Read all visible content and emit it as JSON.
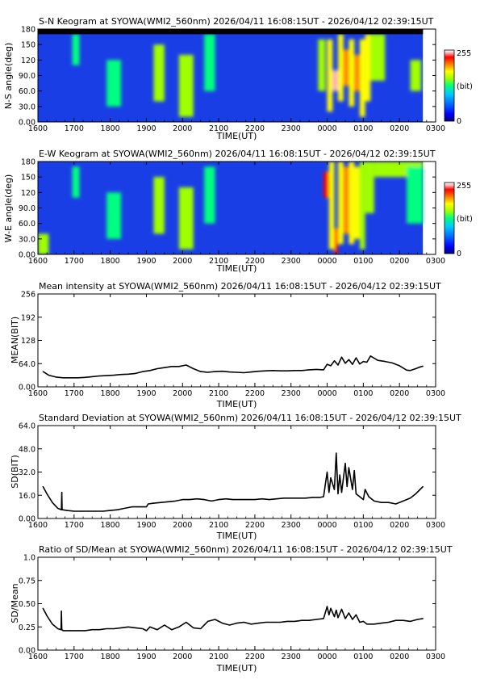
{
  "figure": {
    "time_axis": {
      "tick_labels": [
        "1600",
        "1700",
        "1800",
        "1900",
        "2000",
        "2100",
        "2200",
        "2300",
        "0000",
        "0100",
        "0200",
        "0300"
      ],
      "xlabel": "TIME(UT)",
      "start_hour": 16,
      "end_hour": 27,
      "data_end_hour": 26.65
    }
  },
  "keograms": [
    {
      "id": "sn",
      "title": "S-N Keogram at SYOWA(WMI2_560nm)    2026/04/11 16:08:15UT - 2026/04/12 02:39:15UT",
      "ylabel": "N-S angle(deg)",
      "yticks": [
        "0.00",
        "30.0",
        "60.0",
        "90.0",
        "120",
        "150",
        "180"
      ],
      "colorbar": {
        "max": "255",
        "unit": "(bit)",
        "min": "0"
      },
      "color_scale": [
        "#00007f",
        "#0000ff",
        "#0070ff",
        "#00c8ff",
        "#00ff80",
        "#a0ff00",
        "#ffff00",
        "#ff8000",
        "#ff0000",
        "#ffb0b0",
        "#ffffff"
      ],
      "background_color": "#1a3ee6",
      "top_band": {
        "from_deg": 170,
        "to_deg": 180,
        "color": "#000000",
        "end_hour": 26.65
      },
      "bright_features": [
        {
          "x": [
            16.95,
            17.15
          ],
          "y": [
            110,
            170
          ],
          "level": 0.42
        },
        {
          "x": [
            17.9,
            18.3
          ],
          "y": [
            30,
            120
          ],
          "level": 0.42
        },
        {
          "x": [
            19.2,
            19.5
          ],
          "y": [
            40,
            150
          ],
          "level": 0.45
        },
        {
          "x": [
            19.9,
            20.3
          ],
          "y": [
            10,
            130
          ],
          "level": 0.48
        },
        {
          "x": [
            20.6,
            20.9
          ],
          "y": [
            60,
            170
          ],
          "level": 0.42
        },
        {
          "x": [
            23.75,
            23.95
          ],
          "y": [
            60,
            160
          ],
          "level": 0.45
        },
        {
          "x": [
            24.0,
            24.15
          ],
          "y": [
            20,
            160
          ],
          "level": 0.55
        },
        {
          "x": [
            24.15,
            24.3
          ],
          "y": [
            60,
            100
          ],
          "level": 0.85
        },
        {
          "x": [
            24.3,
            24.45
          ],
          "y": [
            40,
            170
          ],
          "level": 0.62
        },
        {
          "x": [
            24.45,
            24.6
          ],
          "y": [
            70,
            140
          ],
          "level": 0.72
        },
        {
          "x": [
            24.6,
            24.75
          ],
          "y": [
            30,
            160
          ],
          "level": 0.58
        },
        {
          "x": [
            24.75,
            24.9
          ],
          "y": [
            60,
            130
          ],
          "level": 0.7
        },
        {
          "x": [
            24.9,
            25.05
          ],
          "y": [
            10,
            160
          ],
          "level": 0.55
        },
        {
          "x": [
            25.05,
            25.2
          ],
          "y": [
            40,
            170
          ],
          "level": 0.62
        },
        {
          "x": [
            25.2,
            25.6
          ],
          "y": [
            80,
            170
          ],
          "level": 0.45
        },
        {
          "x": [
            26.3,
            26.6
          ],
          "y": [
            60,
            120
          ],
          "level": 0.45
        }
      ]
    },
    {
      "id": "ew",
      "title": "E-W Keogram at SYOWA(WMI2_560nm)    2026/04/11 16:08:15UT - 2026/04/12 02:39:15UT",
      "ylabel": "W-E angle(deg)",
      "yticks": [
        "0.00",
        "30.0",
        "60.0",
        "90.0",
        "120",
        "150",
        "180"
      ],
      "colorbar": {
        "max": "255",
        "unit": "(bit)",
        "min": "0"
      },
      "color_scale": [
        "#00007f",
        "#0000ff",
        "#0070ff",
        "#00c8ff",
        "#00ff80",
        "#a0ff00",
        "#ffff00",
        "#ff8000",
        "#ff0000",
        "#ffb0b0",
        "#ffffff"
      ],
      "background_color": "#1a3ee6",
      "top_band": {
        "from_deg": 180,
        "to_deg": 180,
        "color": "#000000",
        "end_hour": 26.65
      },
      "bright_features": [
        {
          "x": [
            16.0,
            16.3
          ],
          "y": [
            0,
            40
          ],
          "level": 0.45
        },
        {
          "x": [
            16.95,
            17.15
          ],
          "y": [
            110,
            170
          ],
          "level": 0.42
        },
        {
          "x": [
            17.9,
            18.3
          ],
          "y": [
            30,
            120
          ],
          "level": 0.42
        },
        {
          "x": [
            19.2,
            19.5
          ],
          "y": [
            40,
            150
          ],
          "level": 0.45
        },
        {
          "x": [
            19.9,
            20.3
          ],
          "y": [
            10,
            130
          ],
          "level": 0.48
        },
        {
          "x": [
            20.6,
            20.9
          ],
          "y": [
            60,
            170
          ],
          "level": 0.42
        },
        {
          "x": [
            23.9,
            24.05
          ],
          "y": [
            110,
            160
          ],
          "level": 0.75
        },
        {
          "x": [
            24.05,
            24.2
          ],
          "y": [
            10,
            180
          ],
          "level": 0.62
        },
        {
          "x": [
            24.2,
            24.3
          ],
          "y": [
            0,
            50
          ],
          "level": 0.8
        },
        {
          "x": [
            24.3,
            24.45
          ],
          "y": [
            20,
            180
          ],
          "level": 0.55
        },
        {
          "x": [
            24.45,
            24.6
          ],
          "y": [
            40,
            170
          ],
          "level": 0.68
        },
        {
          "x": [
            24.6,
            24.75
          ],
          "y": [
            20,
            180
          ],
          "level": 0.55
        },
        {
          "x": [
            24.75,
            24.9
          ],
          "y": [
            30,
            170
          ],
          "level": 0.62
        },
        {
          "x": [
            24.9,
            25.05
          ],
          "y": [
            10,
            180
          ],
          "level": 0.52
        },
        {
          "x": [
            25.05,
            25.3
          ],
          "y": [
            80,
            180
          ],
          "level": 0.5
        },
        {
          "x": [
            25.3,
            26.65
          ],
          "y": [
            150,
            180
          ],
          "level": 0.45
        },
        {
          "x": [
            26.2,
            26.65
          ],
          "y": [
            60,
            170
          ],
          "level": 0.42
        }
      ]
    }
  ],
  "chart_data": [
    {
      "type": "line",
      "title": "Mean intensity at SYOWA(WMI2_560nm)    2026/04/11 16:08:15UT - 2026/04/12 02:39:15UT",
      "xlabel": "TIME(UT)",
      "ylabel": "MEAN(BIT)",
      "yticks": [
        "0.00",
        "64.0",
        "128",
        "192",
        "256"
      ],
      "ylim": [
        0,
        256
      ],
      "xlim": [
        16,
        27
      ],
      "x": [
        16.14,
        16.3,
        16.5,
        16.7,
        16.9,
        17.1,
        17.3,
        17.5,
        17.7,
        17.9,
        18.1,
        18.3,
        18.5,
        18.7,
        18.9,
        19.1,
        19.3,
        19.5,
        19.7,
        19.9,
        20.1,
        20.3,
        20.5,
        20.7,
        20.9,
        21.1,
        21.3,
        21.5,
        21.7,
        21.9,
        22.1,
        22.3,
        22.5,
        22.7,
        22.9,
        23.1,
        23.3,
        23.5,
        23.7,
        23.9,
        24.0,
        24.1,
        24.2,
        24.3,
        24.4,
        24.5,
        24.6,
        24.7,
        24.8,
        24.9,
        25.0,
        25.1,
        25.2,
        25.4,
        25.6,
        25.8,
        26.0,
        26.2,
        26.3,
        26.45,
        26.55,
        26.65
      ],
      "series": [
        {
          "values": [
            42,
            32,
            27,
            25,
            25,
            25,
            26,
            28,
            30,
            31,
            32,
            34,
            35,
            37,
            42,
            45,
            50,
            53,
            56,
            56,
            60,
            50,
            42,
            40,
            42,
            43,
            41,
            40,
            39,
            41,
            43,
            44,
            45,
            44,
            44,
            45,
            45,
            47,
            48,
            47,
            62,
            58,
            72,
            60,
            82,
            65,
            75,
            62,
            80,
            63,
            70,
            68,
            85,
            73,
            70,
            66,
            58,
            46,
            45,
            50,
            54,
            57
          ]
        }
      ]
    },
    {
      "type": "line",
      "title": "Standard Deviation at SYOWA(WMI2_560nm)    2026/04/11 16:08:15UT - 2026/04/12 02:39:15UT",
      "xlabel": "TIME(UT)",
      "ylabel": "SD(BIT)",
      "yticks": [
        "0.00",
        "16.0",
        "32.0",
        "48.0",
        "64.0"
      ],
      "ylim": [
        0,
        64
      ],
      "xlim": [
        16,
        27
      ],
      "x": [
        16.14,
        16.25,
        16.4,
        16.55,
        16.65,
        16.66,
        16.67,
        16.68,
        16.8,
        17.0,
        17.2,
        17.4,
        17.6,
        17.8,
        18.0,
        18.2,
        18.4,
        18.6,
        18.8,
        19.0,
        19.05,
        19.2,
        19.4,
        19.6,
        19.8,
        20.0,
        20.2,
        20.4,
        20.6,
        20.8,
        21.0,
        21.2,
        21.4,
        21.6,
        21.8,
        22.0,
        22.2,
        22.4,
        22.6,
        22.8,
        23.0,
        23.2,
        23.4,
        23.6,
        23.8,
        23.9,
        24.0,
        24.05,
        24.1,
        24.2,
        24.25,
        24.3,
        24.35,
        24.4,
        24.5,
        24.55,
        24.6,
        24.7,
        24.75,
        24.8,
        24.9,
        25.0,
        25.05,
        25.15,
        25.3,
        25.5,
        25.7,
        25.9,
        26.1,
        26.3,
        26.45,
        26.65
      ],
      "series": [
        {
          "values": [
            22,
            17,
            11,
            7,
            6,
            18,
            6,
            6,
            5.5,
            5,
            5,
            5,
            5,
            5,
            5.5,
            6,
            7,
            8,
            8,
            8,
            10,
            10.5,
            11,
            11.5,
            12,
            13,
            13,
            13.5,
            13,
            12,
            13,
            13.5,
            13,
            13,
            13,
            13,
            13.5,
            13,
            13.5,
            14,
            14,
            14,
            14,
            14.5,
            14.5,
            15,
            32,
            18,
            28,
            20,
            45,
            17,
            30,
            18,
            38,
            22,
            35,
            20,
            33,
            17,
            15,
            13,
            20,
            15,
            12,
            11,
            11,
            10,
            12,
            14,
            17,
            22
          ]
        }
      ]
    },
    {
      "type": "line",
      "title": "Ratio of SD/Mean at SYOWA(WMI2_560nm)    2026/04/11 16:08:15UT - 2026/04/12 02:39:15UT",
      "xlabel": "TIME(UT)",
      "ylabel": "SD/Mean",
      "yticks": [
        "0.00",
        "0.25",
        "0.50",
        "0.75",
        "1.0"
      ],
      "ylim": [
        0,
        1
      ],
      "xlim": [
        16,
        27
      ],
      "x": [
        16.14,
        16.25,
        16.4,
        16.55,
        16.64,
        16.65,
        16.66,
        16.7,
        16.9,
        17.1,
        17.3,
        17.5,
        17.7,
        17.9,
        18.1,
        18.3,
        18.5,
        18.7,
        18.9,
        19.0,
        19.1,
        19.3,
        19.5,
        19.7,
        19.9,
        20.1,
        20.3,
        20.5,
        20.7,
        20.9,
        21.1,
        21.3,
        21.5,
        21.7,
        21.9,
        22.1,
        22.3,
        22.5,
        22.7,
        22.9,
        23.1,
        23.3,
        23.5,
        23.7,
        23.9,
        24.0,
        24.05,
        24.1,
        24.2,
        24.25,
        24.3,
        24.4,
        24.5,
        24.6,
        24.7,
        24.8,
        24.9,
        25.0,
        25.1,
        25.3,
        25.5,
        25.7,
        25.9,
        26.1,
        26.3,
        26.5,
        26.65
      ],
      "series": [
        {
          "values": [
            0.45,
            0.37,
            0.28,
            0.23,
            0.22,
            0.42,
            0.22,
            0.21,
            0.21,
            0.21,
            0.21,
            0.22,
            0.22,
            0.23,
            0.23,
            0.24,
            0.25,
            0.24,
            0.23,
            0.21,
            0.25,
            0.22,
            0.27,
            0.22,
            0.25,
            0.3,
            0.24,
            0.23,
            0.31,
            0.33,
            0.29,
            0.27,
            0.29,
            0.3,
            0.28,
            0.29,
            0.3,
            0.3,
            0.3,
            0.31,
            0.31,
            0.32,
            0.32,
            0.33,
            0.34,
            0.47,
            0.38,
            0.45,
            0.36,
            0.43,
            0.35,
            0.44,
            0.34,
            0.4,
            0.33,
            0.38,
            0.3,
            0.31,
            0.28,
            0.28,
            0.29,
            0.3,
            0.32,
            0.32,
            0.31,
            0.33,
            0.34
          ]
        }
      ]
    }
  ]
}
